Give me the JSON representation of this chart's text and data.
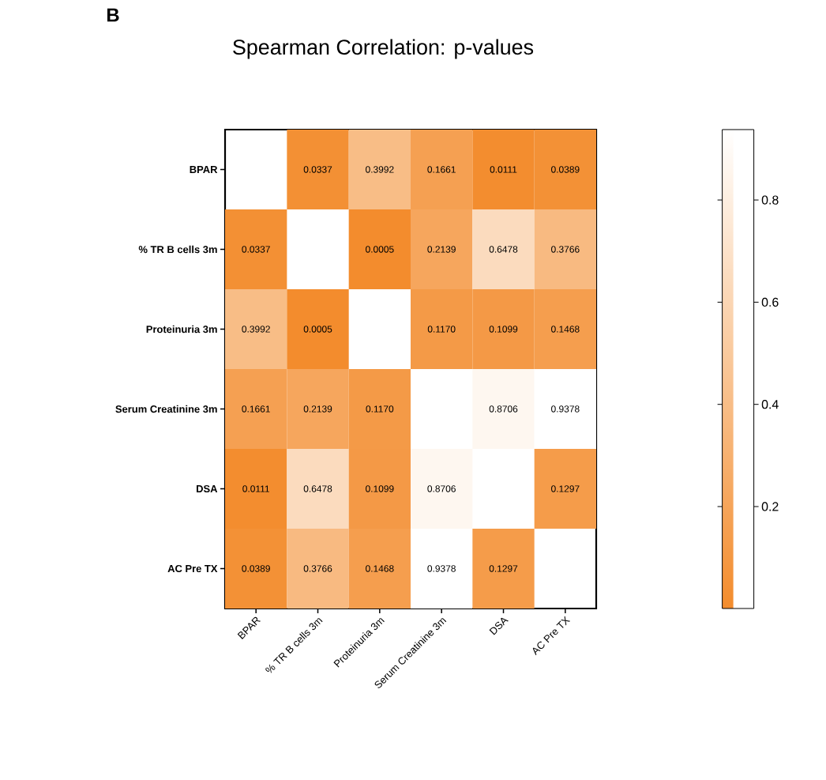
{
  "chart_data": {
    "type": "heatmap",
    "title": "Spearman Correlation: p-values",
    "annotations": [
      "B"
    ],
    "categories": [
      "BPAR",
      "% TR B cells 3m",
      "Proteinuria 3m",
      "Serum Creatinine 3m",
      "DSA",
      "AC Pre TX"
    ],
    "y_categories": [
      "BPAR",
      "% TR B cells 3m",
      "Proteinuria 3m",
      "Serum Creatinine 3m",
      "DSA",
      "AC Pre TX"
    ],
    "cells": [
      [
        null,
        0.0337,
        0.3992,
        0.1661,
        0.0111,
        0.0389
      ],
      [
        0.0337,
        null,
        0.0005,
        0.2139,
        0.6478,
        0.3766
      ],
      [
        0.3992,
        0.0005,
        null,
        0.117,
        0.1099,
        0.1468
      ],
      [
        0.1661,
        0.2139,
        0.117,
        null,
        0.8706,
        0.9378
      ],
      [
        0.0111,
        0.6478,
        0.1099,
        0.8706,
        null,
        0.1297
      ],
      [
        0.0389,
        0.3766,
        0.1468,
        0.9378,
        0.1297,
        null
      ]
    ],
    "cell_labels": [
      [
        null,
        "0.0337",
        "0.3992",
        "0.1661",
        "0.0111",
        "0.0389"
      ],
      [
        null,
        null,
        "0.0005",
        "0.2139",
        "0.6478",
        "0.3766"
      ],
      [
        null,
        null,
        null,
        "0.1170",
        "0.1099",
        "0.1468"
      ],
      [
        null,
        null,
        null,
        null,
        "0.8706",
        "0.9378"
      ],
      [
        null,
        null,
        null,
        null,
        null,
        "0.1297"
      ],
      [
        null,
        null,
        null,
        null,
        null,
        null
      ]
    ],
    "data_labels": true,
    "clim": [
      0.0005,
      0.9378
    ],
    "cticks": [
      0.2,
      0.4,
      0.6,
      0.8
    ]
  }
}
